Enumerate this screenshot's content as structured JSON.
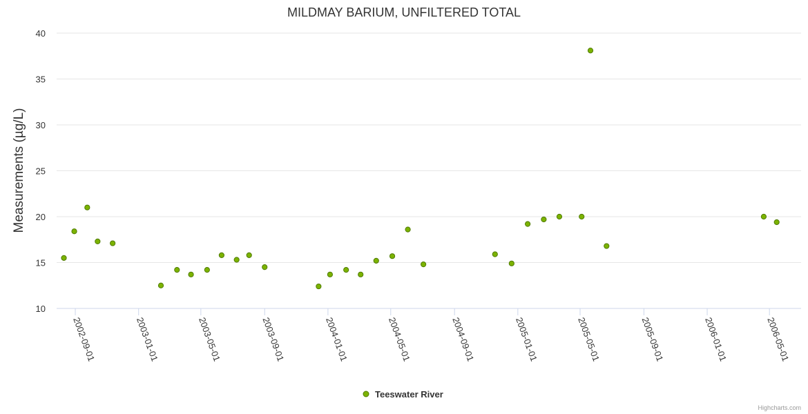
{
  "chart_data": {
    "type": "scatter",
    "title": "MILDMAY BARIUM, UNFILTERED TOTAL",
    "ylabel": "Measurements (µg/L)",
    "xlabel": "",
    "ylim": [
      10,
      40
    ],
    "yticks": [
      10,
      15,
      20,
      25,
      30,
      35,
      40
    ],
    "xlim": [
      "2002-07-27",
      "2006-07-01"
    ],
    "xticks": [
      "2002-09-01",
      "2003-01-01",
      "2003-05-01",
      "2003-09-01",
      "2004-01-01",
      "2004-05-01",
      "2004-09-01",
      "2005-01-01",
      "2005-05-01",
      "2005-09-01",
      "2006-01-01",
      "2006-05-01"
    ],
    "grid": true,
    "legend_position": "bottom-center",
    "series": [
      {
        "name": "Teeswater River",
        "color": "#7cb300",
        "points": [
          {
            "date": "2002-08-10",
            "value": 15.5
          },
          {
            "date": "2002-08-30",
            "value": 18.4
          },
          {
            "date": "2002-09-24",
            "value": 21.0
          },
          {
            "date": "2002-10-14",
            "value": 17.3
          },
          {
            "date": "2002-11-12",
            "value": 17.1
          },
          {
            "date": "2003-02-13",
            "value": 12.5
          },
          {
            "date": "2003-03-16",
            "value": 14.2
          },
          {
            "date": "2003-04-12",
            "value": 13.7
          },
          {
            "date": "2003-05-13",
            "value": 14.2
          },
          {
            "date": "2003-06-10",
            "value": 15.8
          },
          {
            "date": "2003-07-09",
            "value": 15.3
          },
          {
            "date": "2003-08-02",
            "value": 15.8
          },
          {
            "date": "2003-09-01",
            "value": 14.5
          },
          {
            "date": "2003-12-14",
            "value": 12.4
          },
          {
            "date": "2004-01-05",
            "value": 13.7
          },
          {
            "date": "2004-02-05",
            "value": 14.2
          },
          {
            "date": "2004-03-04",
            "value": 13.7
          },
          {
            "date": "2004-04-03",
            "value": 15.2
          },
          {
            "date": "2004-05-04",
            "value": 15.7
          },
          {
            "date": "2004-06-03",
            "value": 18.6
          },
          {
            "date": "2004-07-03",
            "value": 14.8
          },
          {
            "date": "2004-11-18",
            "value": 15.9
          },
          {
            "date": "2004-12-20",
            "value": 14.9
          },
          {
            "date": "2005-01-20",
            "value": 19.2
          },
          {
            "date": "2005-02-20",
            "value": 19.7
          },
          {
            "date": "2005-03-22",
            "value": 20.0
          },
          {
            "date": "2005-05-04",
            "value": 20.0
          },
          {
            "date": "2005-05-21",
            "value": 38.1
          },
          {
            "date": "2005-06-21",
            "value": 16.8
          },
          {
            "date": "2006-04-20",
            "value": 20.0
          },
          {
            "date": "2006-05-15",
            "value": 19.4
          }
        ]
      }
    ]
  },
  "credit": "Highcharts.com"
}
